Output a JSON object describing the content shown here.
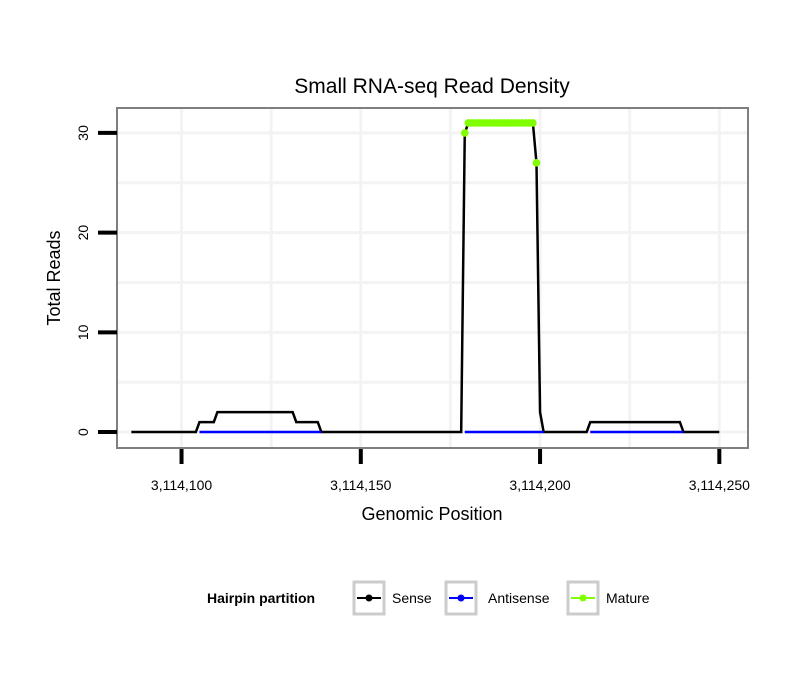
{
  "chart_data": {
    "type": "line",
    "title": "Small RNA-seq Read Density",
    "xlabel": "Genomic Position",
    "ylabel": "Total Reads",
    "xlim": [
      3114082,
      3114258
    ],
    "ylim": [
      -1.6,
      32.5
    ],
    "x_ticks": [
      3114100,
      3114150,
      3114200,
      3114250
    ],
    "x_tick_labels": [
      "3,114,100",
      "3,114,150",
      "3,114,200",
      "3,114,250"
    ],
    "y_ticks": [
      0,
      10,
      20,
      30
    ],
    "y_tick_labels": [
      "0",
      "10",
      "20",
      "30"
    ],
    "grid": true,
    "legend": {
      "title": "Hairpin partition",
      "placement": "bottom",
      "entries": [
        "Sense",
        "Antisense",
        "Mature"
      ]
    },
    "series": [
      {
        "name": "Sense",
        "color": "#000000",
        "points": [
          [
            3114086,
            0
          ],
          [
            3114104,
            0
          ],
          [
            3114105,
            1
          ],
          [
            3114109,
            1
          ],
          [
            3114110,
            2
          ],
          [
            3114131,
            2
          ],
          [
            3114132,
            1
          ],
          [
            3114138,
            1
          ],
          [
            3114139,
            0
          ],
          [
            3114178,
            0
          ],
          [
            3114179,
            30
          ],
          [
            3114180,
            31
          ],
          [
            3114198,
            31
          ],
          [
            3114199,
            27
          ],
          [
            3114200,
            2
          ],
          [
            3114201,
            0
          ],
          [
            3114213,
            0
          ],
          [
            3114214,
            1
          ],
          [
            3114239,
            1
          ],
          [
            3114240,
            0
          ],
          [
            3114250,
            0
          ]
        ]
      },
      {
        "name": "Antisense",
        "color": "#0000ff",
        "segments": [
          [
            [
              3114105,
              0
            ],
            [
              3114139,
              0
            ]
          ],
          [
            [
              3114179,
              0
            ],
            [
              3114201,
              0
            ]
          ],
          [
            [
              3114214,
              0
            ],
            [
              3114240,
              0
            ]
          ]
        ]
      },
      {
        "name": "Mature",
        "color": "#7fff00",
        "points": [
          [
            3114179,
            30
          ],
          [
            3114180,
            31
          ],
          [
            3114181,
            31
          ],
          [
            3114182,
            31
          ],
          [
            3114183,
            31
          ],
          [
            3114184,
            31
          ],
          [
            3114185,
            31
          ],
          [
            3114186,
            31
          ],
          [
            3114187,
            31
          ],
          [
            3114188,
            31
          ],
          [
            3114189,
            31
          ],
          [
            3114190,
            31
          ],
          [
            3114191,
            31
          ],
          [
            3114192,
            31
          ],
          [
            3114193,
            31
          ],
          [
            3114194,
            31
          ],
          [
            3114195,
            31
          ],
          [
            3114196,
            31
          ],
          [
            3114197,
            31
          ],
          [
            3114198,
            31
          ],
          [
            3114199,
            27
          ]
        ]
      }
    ]
  }
}
